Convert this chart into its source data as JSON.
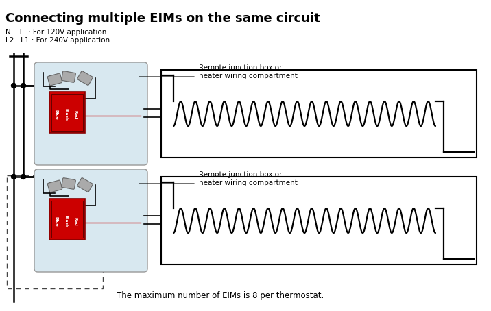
{
  "title": "Connecting multiple EIMs on the same circuit",
  "title_fontsize": 13,
  "legend_line1": "N    L  : For 120V application",
  "legend_line2": "L2   L1 : For 240V application",
  "remote_label_1": "Remote junction box or\nheater wiring compartment",
  "remote_label_2": "Remote junction box or\nheater wiring compartment",
  "footer": "The maximum number of EIMs is 8 per thermostat.",
  "bg_color": "#ffffff",
  "line_color": "#000000",
  "red_color": "#cc0000",
  "dark_red": "#880000",
  "gray_plug": "#aaaaaa",
  "gray_plug_edge": "#666666",
  "eim_bg_fill": "#d8e8f0",
  "eim_bg_edge": "#888888",
  "dashed_color": "#444444",
  "heater_lw": 1.6,
  "bus_lw": 1.8,
  "coil_n": 18
}
